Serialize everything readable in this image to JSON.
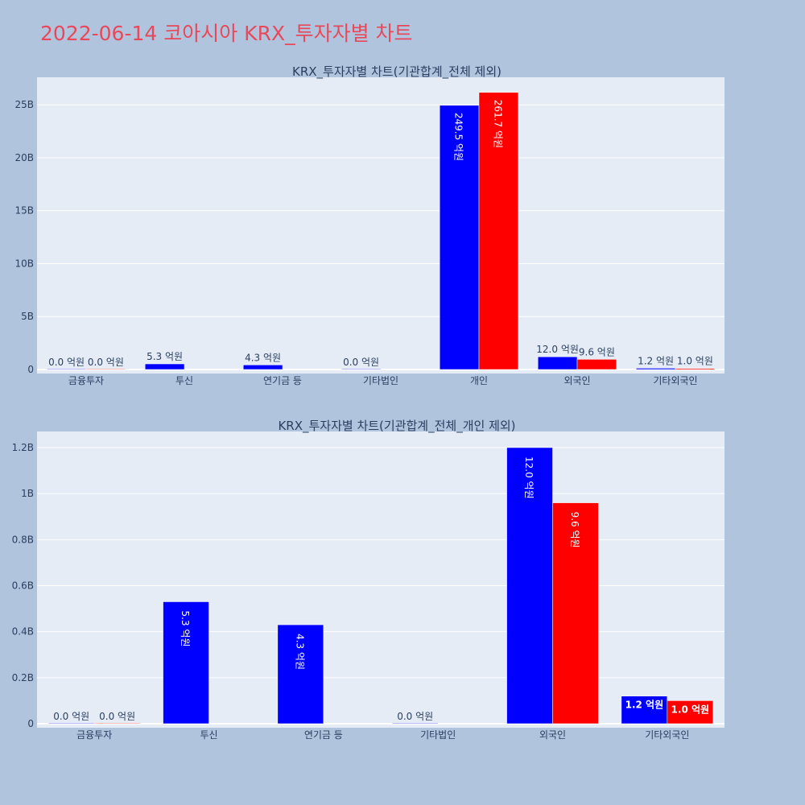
{
  "page": {
    "title": "2022-06-14 코아시아 KRX_투자자별 차트"
  },
  "colors": {
    "page_background": "#b0c4de",
    "plot_background": "#e5ecf6",
    "title": "#e8495a",
    "series_1": "#0000ff",
    "series_2": "#ff0000",
    "text": "#2a3f5f"
  },
  "chart_data": [
    {
      "type": "bar",
      "title": "KRX_투자자별 차트(기관합계_전체 제외)",
      "categories": [
        "금융투자",
        "투신",
        "연기금 등",
        "기타법인",
        "개인",
        "외국인",
        "기타외국인"
      ],
      "series": [
        {
          "values": [
            0,
            530000000,
            430000000,
            0,
            24950000000,
            1200000000,
            120000000
          ],
          "color": "#0000ff",
          "labels": [
            "0.0 억원",
            "5.3 억원",
            "4.3 억원",
            "0.0 억원",
            "249.5 억원",
            "12.0 억원",
            "1.2 억원"
          ]
        },
        {
          "values": [
            0,
            null,
            null,
            null,
            26170000000,
            960000000,
            100000000
          ],
          "color": "#ff0000",
          "labels": [
            "0.0 억원",
            "",
            "",
            "",
            "261.7 억원",
            "9.6 억원",
            "1.0 억원"
          ]
        }
      ],
      "yticks": [
        0,
        5000000000,
        10000000000,
        15000000000,
        20000000000,
        25000000000
      ],
      "ytick_labels": [
        "0",
        "5B",
        "10B",
        "15B",
        "20B",
        "25B"
      ],
      "ylim": [
        0,
        27600000000
      ],
      "grid": true,
      "legend": "none"
    },
    {
      "type": "bar",
      "title": "KRX_투자자별 차트(기관합계_전체_개인 제외)",
      "categories": [
        "금융투자",
        "투신",
        "연기금 등",
        "기타법인",
        "외국인",
        "기타외국인"
      ],
      "series": [
        {
          "values": [
            0,
            530000000,
            430000000,
            0,
            1200000000,
            120000000
          ],
          "color": "#0000ff",
          "labels": [
            "0.0 억원",
            "5.3 억원",
            "4.3 억원",
            "0.0 억원",
            "12.0 억원",
            "1.2 억원"
          ]
        },
        {
          "values": [
            0,
            null,
            null,
            null,
            960000000,
            100000000
          ],
          "color": "#ff0000",
          "labels": [
            "0.0 억원",
            "",
            "",
            "",
            "9.6 억원",
            "1.0 억원"
          ]
        }
      ],
      "yticks": [
        0,
        200000000,
        400000000,
        600000000,
        800000000,
        1000000000,
        1200000000
      ],
      "ytick_labels": [
        "0",
        "0.2B",
        "0.4B",
        "0.6B",
        "0.8B",
        "1B",
        "1.2B"
      ],
      "ylim": [
        0,
        1270000000
      ],
      "grid": true,
      "legend": "none"
    }
  ]
}
